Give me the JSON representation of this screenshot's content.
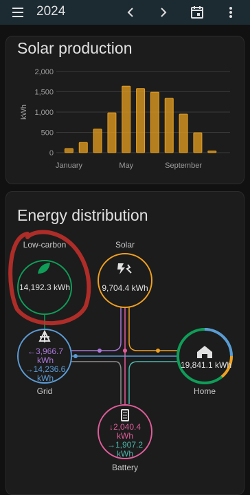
{
  "header": {
    "title": "2024"
  },
  "chart_data": {
    "type": "bar",
    "title": "Solar production",
    "y_label": "kWh",
    "categories": [
      "January",
      null,
      null,
      null,
      "May",
      null,
      null,
      null,
      "September",
      null,
      null,
      null
    ],
    "values": [
      100,
      250,
      580,
      980,
      1640,
      1580,
      1490,
      1340,
      950,
      490,
      40,
      null
    ],
    "color": "#e8a020",
    "ylim": [
      0,
      2000
    ],
    "yticks": [
      0,
      500,
      {
        "value": 1000,
        "label": "1,000"
      },
      {
        "value": 1500,
        "label": "1,500"
      },
      {
        "value": 2000,
        "label": "2,000"
      }
    ],
    "grid": true
  },
  "energy_card": {
    "title": "Energy distribution",
    "nodes": {
      "low_carbon": {
        "label": "Low-carbon",
        "value": "14,192.3 kWh"
      },
      "solar": {
        "label": "Solar",
        "value": "9,704.4 kWh"
      },
      "grid": {
        "label": "Grid",
        "in": "←3,966.7 kWh",
        "out": "→14,236.6 kWh"
      },
      "home": {
        "label": "Home",
        "value": "19,841.1 kWh"
      },
      "battery": {
        "label": "Battery",
        "out": "↓2,040.4 kWh",
        "in": "→1,907.2 kWh"
      }
    }
  }
}
